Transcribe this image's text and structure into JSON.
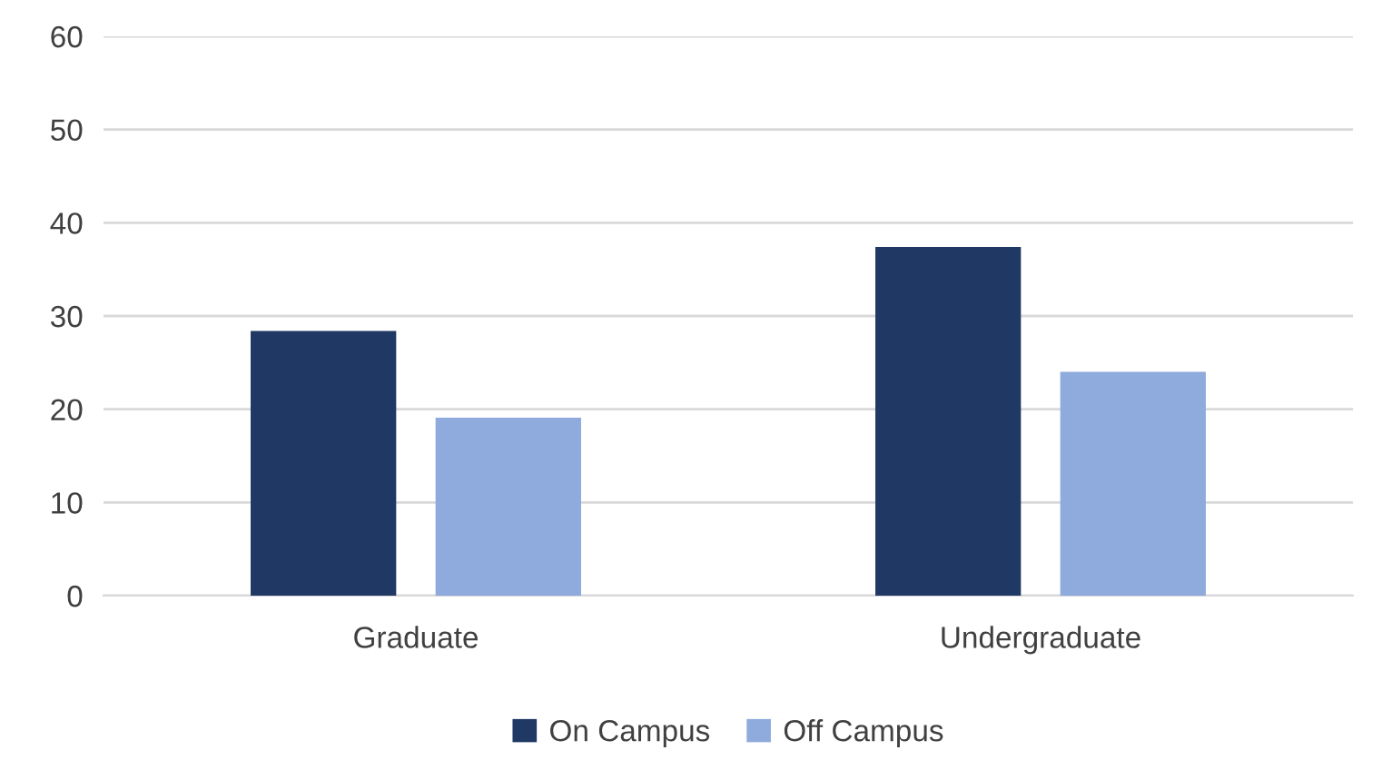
{
  "chart_data": {
    "type": "bar",
    "categories": [
      "Graduate",
      "Undergraduate"
    ],
    "series": [
      {
        "name": "On Campus",
        "color": "#203864",
        "values": [
          28.4,
          37.4
        ]
      },
      {
        "name": "Off Campus",
        "color": "#8faadc",
        "values": [
          19.1,
          24.0
        ]
      }
    ],
    "ylim": [
      0,
      60
    ],
    "yticks": [
      0,
      10,
      20,
      30,
      40,
      50,
      60
    ],
    "grid": "y",
    "legend": "bottom"
  }
}
